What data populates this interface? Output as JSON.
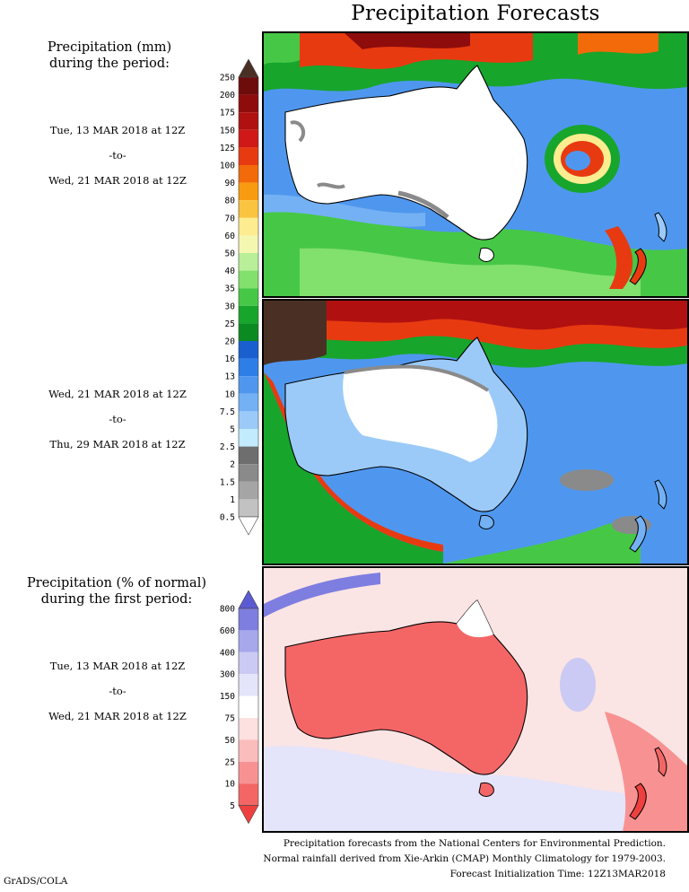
{
  "title": "Precipitation Forecasts",
  "section1": {
    "heading_line1": "Precipitation (mm)",
    "heading_line2": "during the period:",
    "period1": {
      "start": "Tue, 13 MAR 2018 at 12Z",
      "sep": "-to-",
      "end": "Wed, 21 MAR 2018 at 12Z"
    },
    "period2": {
      "start": "Wed, 21 MAR 2018 at 12Z",
      "sep": "-to-",
      "end": "Thu, 29 MAR 2018 at 12Z"
    },
    "colorbar": {
      "labels": [
        "250",
        "200",
        "175",
        "150",
        "125",
        "100",
        "90",
        "80",
        "70",
        "60",
        "50",
        "40",
        "35",
        "30",
        "25",
        "20",
        "16",
        "13",
        "10",
        "7.5",
        "5",
        "2.5",
        "2",
        "1.5",
        "1",
        "0.5"
      ],
      "colors": [
        "#4a3024",
        "#6e0b0b",
        "#8e0c0c",
        "#b01010",
        "#d01818",
        "#e83a10",
        "#f26a0a",
        "#f99b10",
        "#fbc440",
        "#fdec90",
        "#f4f7b0",
        "#b8ef98",
        "#82e06c",
        "#46c846",
        "#17a52c",
        "#0c8a22",
        "#1a5fd0",
        "#2d7ee6",
        "#4f97ee",
        "#74b1f4",
        "#9ccaf8",
        "#c2ebfd",
        "#6e6e6e",
        "#8a8a8a",
        "#a5a5a5",
        "#c2c2c2",
        "#ffffff"
      ]
    }
  },
  "section2": {
    "heading_line1": "Precipitation (% of normal)",
    "heading_line2": "during the first period:",
    "period": {
      "start": "Tue, 13 MAR 2018 at 12Z",
      "sep": "-to-",
      "end": "Wed, 21 MAR 2018 at 12Z"
    },
    "colorbar": {
      "labels": [
        "800",
        "600",
        "400",
        "300",
        "150",
        "75",
        "50",
        "25",
        "10",
        "5"
      ],
      "colors": [
        "#5a5ad2",
        "#7e7ee0",
        "#a7a7ec",
        "#cacaf4",
        "#e4e4fa",
        "#ffffff",
        "#fde0e0",
        "#fbbcbc",
        "#f89292",
        "#f46666",
        "#ef4040"
      ]
    }
  },
  "credits": {
    "line1": "Precipitation forecasts from the National Centers for Environmental Prediction.",
    "line2": "Normal rainfall derived from Xie-Arkin (CMAP) Monthly Climatology for 1979-2003.",
    "line3": "Forecast Initialization Time: 12Z13MAR2018"
  },
  "footer": "GrADS/COLA",
  "colors": {
    "background": "#ffffff",
    "coastline": "#000000"
  }
}
